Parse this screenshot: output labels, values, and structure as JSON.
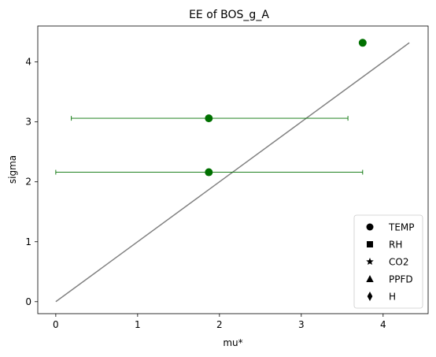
{
  "chart_data": {
    "type": "scatter",
    "title": "EE of BOS_g_A",
    "xlabel": "mu*",
    "ylabel": "sigma",
    "xlim": [
      -0.22,
      4.55
    ],
    "ylim": [
      -0.2,
      4.6
    ],
    "xticks": [
      0,
      1,
      2,
      3,
      4
    ],
    "yticks": [
      0,
      1,
      2,
      3,
      4
    ],
    "grid": false,
    "legend_position": "lower-right",
    "marker_color": "#007000",
    "line_color": "#808080",
    "reference_line": {
      "x": [
        0,
        4.32
      ],
      "y": [
        0,
        4.32
      ]
    },
    "points": [
      {
        "x": 3.75,
        "y": 4.32
      },
      {
        "x": 1.87,
        "y": 3.06,
        "x_err_low": 0.19,
        "x_err_high": 3.57
      },
      {
        "x": 1.87,
        "y": 2.16,
        "x_err_low": 0.0,
        "x_err_high": 3.75
      }
    ],
    "legend": [
      {
        "label": "TEMP",
        "marker": "circle"
      },
      {
        "label": "RH",
        "marker": "square"
      },
      {
        "label": "CO2",
        "marker": "star"
      },
      {
        "label": "PPFD",
        "marker": "triangle"
      },
      {
        "label": "H",
        "marker": "diamond"
      }
    ]
  }
}
